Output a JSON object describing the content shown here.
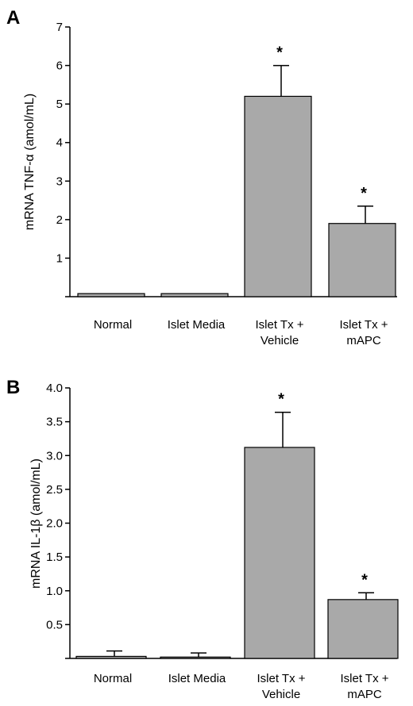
{
  "chart_data": [
    {
      "panel": "A",
      "type": "bar",
      "ylabel": "mRNA TNF-α (amol/mL)",
      "categories": [
        [
          "Normal"
        ],
        [
          "Islet Media"
        ],
        [
          "Islet Tx +",
          "Vehicle"
        ],
        [
          "Islet Tx +",
          "mAPC"
        ]
      ],
      "values": [
        0.08,
        0.08,
        5.2,
        1.9
      ],
      "errors": [
        0,
        0,
        0.8,
        0.45
      ],
      "significance": [
        "",
        "",
        "*",
        "*"
      ],
      "ylim": [
        0,
        7
      ],
      "yticks": [
        0,
        1,
        2,
        3,
        4,
        5,
        6,
        7
      ],
      "ytick_labels": [
        "",
        "1",
        "2",
        "3",
        "4",
        "5",
        "6",
        "7"
      ],
      "bar_color": "#a9a9a9"
    },
    {
      "panel": "B",
      "type": "bar",
      "ylabel": "mRNA IL-1β (amol/mL)",
      "categories": [
        [
          "Normal"
        ],
        [
          "Islet Media"
        ],
        [
          "Islet Tx +",
          "Vehicle"
        ],
        [
          "Islet Tx +",
          "mAPC"
        ]
      ],
      "values": [
        0.03,
        0.02,
        3.12,
        0.87
      ],
      "errors": [
        0.08,
        0.06,
        0.52,
        0.1
      ],
      "significance": [
        "",
        "",
        "*",
        "*"
      ],
      "ylim": [
        0,
        4.0
      ],
      "yticks": [
        0,
        0.5,
        1.0,
        1.5,
        2.0,
        2.5,
        3.0,
        3.5,
        4.0
      ],
      "ytick_labels": [
        "",
        "0.5",
        "1.0",
        "1.5",
        "2.0",
        "2.5",
        "3.0",
        "3.5",
        "4.0"
      ],
      "bar_color": "#a9a9a9"
    }
  ]
}
